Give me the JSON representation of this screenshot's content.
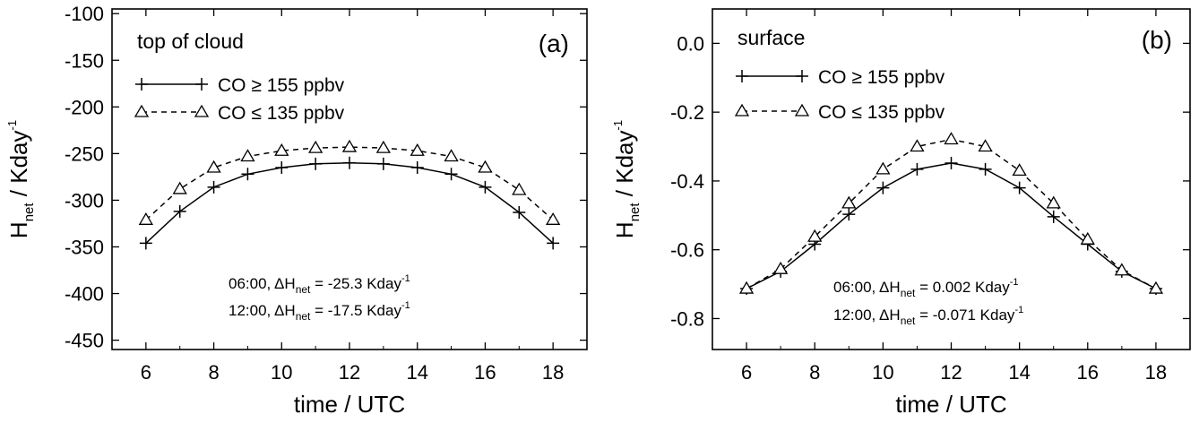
{
  "chart_data": [
    {
      "type": "line",
      "panel_label": "(a)",
      "title": "top of cloud",
      "xlabel": "time / UTC",
      "ylabel": {
        "main": "H",
        "sub": "net",
        "unit": " / Kday",
        "sup": "-1"
      },
      "xlim": [
        5,
        19
      ],
      "ylim": [
        -460,
        -95
      ],
      "xticks": [
        6,
        8,
        10,
        12,
        14,
        16,
        18
      ],
      "yticks": [
        -100,
        -150,
        -200,
        -250,
        -300,
        -350,
        -400,
        -450
      ],
      "x": [
        6,
        7,
        8,
        9,
        10,
        11,
        12,
        13,
        14,
        15,
        16,
        17,
        18
      ],
      "series": [
        {
          "legend": {
            "pre": "CO ",
            "op": ">",
            "post": " 155 ppbv"
          },
          "line_style": "solid",
          "marker": "plus",
          "values": [
            -346,
            -312,
            -286,
            -272,
            -265,
            -261,
            -260,
            -261,
            -265,
            -272,
            -286,
            -313,
            -346
          ]
        },
        {
          "legend": {
            "pre": "CO ",
            "op": "<",
            "post": " 135 ppbv"
          },
          "line_style": "dashed",
          "marker": "triangle",
          "values": [
            -321,
            -288,
            -265,
            -253,
            -247,
            -244,
            -243,
            -244,
            -247,
            -253,
            -265,
            -289,
            -321
          ]
        }
      ],
      "annotations": [
        {
          "pre": "06:00, ΔH",
          "sub": "net",
          "val": " = -25.3 Kday",
          "sup": "-1"
        },
        {
          "pre": "12:00, ΔH",
          "sub": "net",
          "val": " = -17.5 Kday",
          "sup": "-1"
        }
      ],
      "legend_position": "top-left",
      "grid": false
    },
    {
      "type": "line",
      "panel_label": "(b)",
      "title": "surface",
      "xlabel": "time / UTC",
      "ylabel": {
        "main": "H",
        "sub": "net",
        "unit": " / Kday",
        "sup": "-1"
      },
      "xlim": [
        5,
        19
      ],
      "ylim": [
        -0.89,
        0.1
      ],
      "xticks": [
        6,
        8,
        10,
        12,
        14,
        16,
        18
      ],
      "yticks": [
        "0.0",
        "-0.2",
        "-0.4",
        "-0.6",
        "-0.8"
      ],
      "x": [
        6,
        7,
        8,
        9,
        10,
        11,
        12,
        13,
        14,
        15,
        16,
        17,
        18
      ],
      "series": [
        {
          "legend": {
            "pre": "CO ",
            "op": ">",
            "post": " 155 ppbv"
          },
          "line_style": "solid",
          "marker": "plus",
          "values": [
            -0.713,
            -0.663,
            -0.584,
            -0.497,
            -0.42,
            -0.366,
            -0.348,
            -0.366,
            -0.42,
            -0.504,
            -0.584,
            -0.663,
            -0.713
          ]
        },
        {
          "legend": {
            "pre": "CO ",
            "op": "<",
            "post": " 135 ppbv"
          },
          "line_style": "dashed",
          "marker": "triangle",
          "values": [
            -0.713,
            -0.656,
            -0.562,
            -0.465,
            -0.366,
            -0.3,
            -0.279,
            -0.3,
            -0.37,
            -0.465,
            -0.57,
            -0.66,
            -0.713
          ]
        }
      ],
      "annotations": [
        {
          "pre": "06:00, ΔH",
          "sub": "net",
          "val": " =  0.002 Kday",
          "sup": "-1"
        },
        {
          "pre": "12:00, ΔH",
          "sub": "net",
          "val": " = -0.071 Kday",
          "sup": "-1"
        }
      ],
      "legend_position": "top-left",
      "grid": false
    }
  ]
}
